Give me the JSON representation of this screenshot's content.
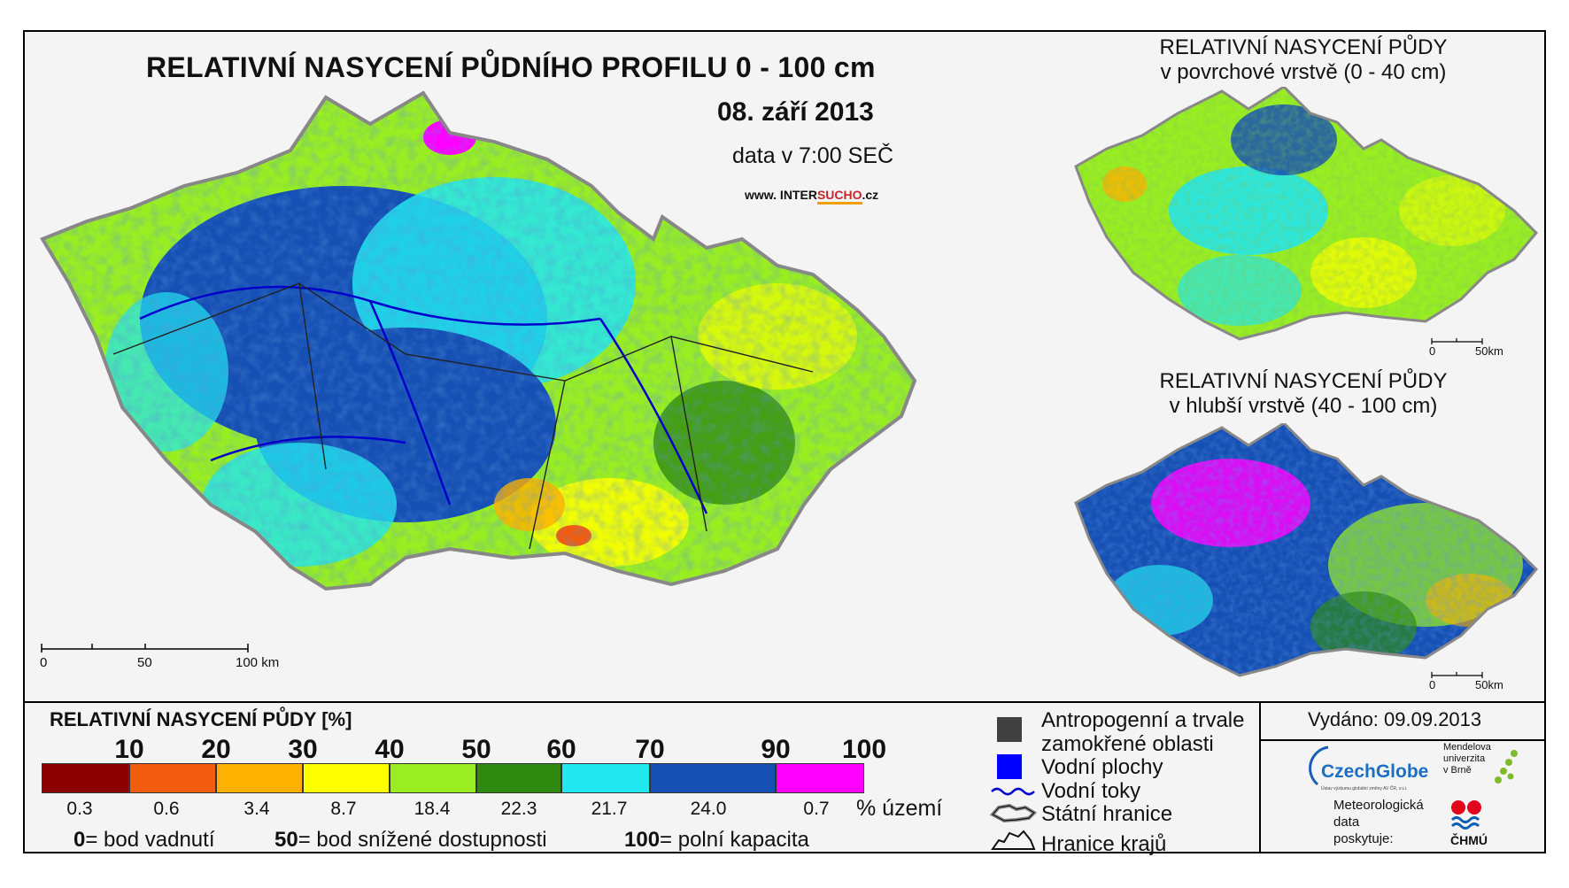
{
  "main_title": "RELATIVNÍ NASYCENÍ PŮDNÍHO PROFILU 0 - 100 cm",
  "date": "08. září 2013",
  "data_time": "data v 7:00 SEČ",
  "website": {
    "prefix": "www. INTER",
    "highlight": "SUCHO",
    "suffix": ".cz"
  },
  "top_map_title": [
    "RELATIVNÍ NASYCENÍ PŮDY",
    "v povrchové vrstvě (0 - 40 cm)"
  ],
  "bottom_map_title": [
    "RELATIVNÍ NASYCENÍ PŮDY",
    "v hlubší vrstvě (40 - 100 cm)"
  ],
  "main_scale": [
    "0",
    "50",
    "100 km"
  ],
  "small_scale": [
    "0",
    "50km"
  ],
  "legend": {
    "title": "RELATIVNÍ NASYCENÍ PŮDY [%]",
    "thresholds": [
      "10",
      "20",
      "30",
      "40",
      "50",
      "60",
      "70",
      "90",
      "100"
    ],
    "classes": [
      {
        "color": "#8b0000",
        "pct": "0.3"
      },
      {
        "color": "#f25c0f",
        "pct": "0.6"
      },
      {
        "color": "#ffb000",
        "pct": "3.4"
      },
      {
        "color": "#ffff00",
        "pct": "8.7"
      },
      {
        "color": "#99ee22",
        "pct": "18.4"
      },
      {
        "color": "#2f8a12",
        "pct": "22.3"
      },
      {
        "color": "#22e6f0",
        "pct": "21.7"
      },
      {
        "color": "#1650b4",
        "pct": "24.0"
      },
      {
        "color": "#ff00ff",
        "pct": "0.7"
      }
    ],
    "pct_unit": "% území",
    "footnotes": [
      {
        "num": "0",
        "text": "= bod vadnutí"
      },
      {
        "num": "50",
        "text": "= bod snížené dostupnosti"
      },
      {
        "num": "100",
        "text": "= polní kapacita"
      }
    ]
  },
  "key": {
    "anthropogenic": "Antropogenní a trvale zamokřené oblasti",
    "water_bodies": "Vodní plochy",
    "rivers": "Vodní toky",
    "state_border": "Státní hranice",
    "region_border": "Hranice krajů",
    "colors": {
      "anthropogenic": "#404040",
      "water": "#0000ff",
      "river": "#0000cc"
    }
  },
  "issued": "Vydáno: 09.09.2013",
  "logos": {
    "czechglobe": "CzechGlobe",
    "czechglobe_sub": "Ústav výzkumu globální změny AV ČR, v.v.i.",
    "mendel": [
      "Mendelova",
      "univerzita",
      "v Brně"
    ],
    "chmu": "ČHMÚ"
  },
  "provider_text": [
    "Meteorologická",
    "data",
    "poskytuje:"
  ]
}
